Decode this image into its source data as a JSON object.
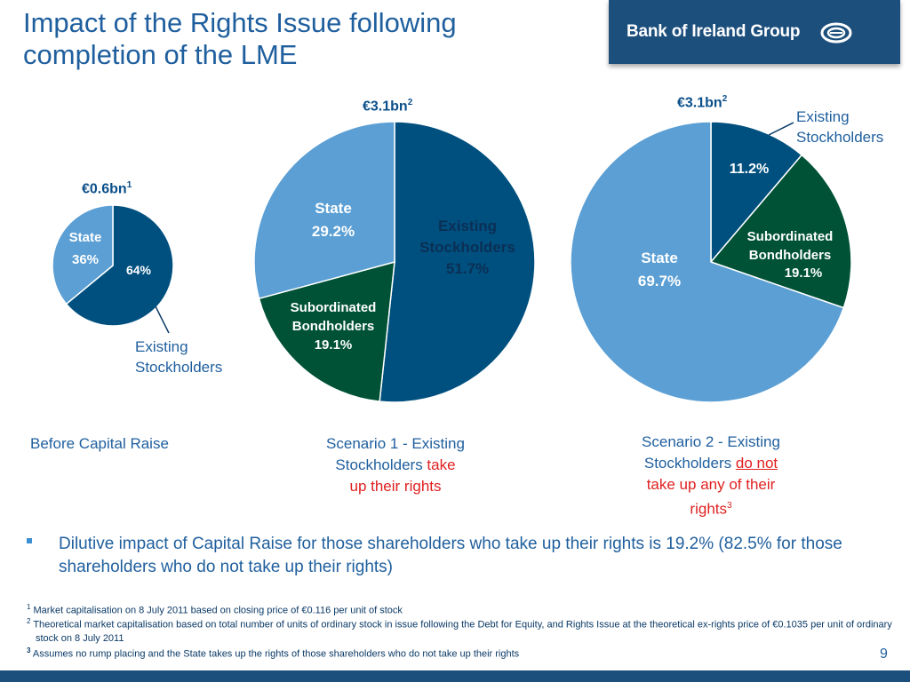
{
  "title": "Impact of the Rights Issue following completion of the LME",
  "logo": {
    "text": "Bank of Ireland Group",
    "icon": "bank-of-ireland-emblem-icon"
  },
  "colors": {
    "dark_blue": "#00507f",
    "light_blue": "#5b9fd4",
    "dark_green": "#005236",
    "text_blue": "#1f5f9e",
    "red": "#e02020"
  },
  "chart_data": [
    {
      "type": "pie",
      "title": "€0.6bn",
      "title_note": "1",
      "caption": "Before Capital Raise",
      "slices": [
        {
          "name": "Existing Stockholders",
          "value": 64,
          "label": "64%",
          "color": "#00507f"
        },
        {
          "name": "State",
          "value": 36,
          "label": "36%",
          "color": "#5b9fd4"
        }
      ]
    },
    {
      "type": "pie",
      "title": "€3.1bn",
      "title_note": "2",
      "caption_parts": [
        "Scenario 1 - Existing",
        "Stockholders ",
        "take",
        "up their rights"
      ],
      "slices": [
        {
          "name": "Existing Stockholders",
          "value": 51.7,
          "label": "51.7%",
          "color": "#00507f"
        },
        {
          "name": "Subordinated Bondholders",
          "value": 19.1,
          "label": "19.1%",
          "color": "#005236"
        },
        {
          "name": "State",
          "value": 29.2,
          "label": "29.2%",
          "color": "#5b9fd4"
        }
      ]
    },
    {
      "type": "pie",
      "title": "€3.1bn",
      "title_note": "2",
      "caption_parts": [
        "Scenario 2 - Existing",
        "Stockholders ",
        "do not",
        "take up any of their",
        "rights",
        "3"
      ],
      "slices": [
        {
          "name": "Existing Stockholders",
          "value": 11.2,
          "label": "11.2%",
          "color": "#00507f"
        },
        {
          "name": "Subordinated Bondholders",
          "value": 19.1,
          "label": "19.1%",
          "color": "#005236"
        },
        {
          "name": "State",
          "value": 69.7,
          "label": "69.7%",
          "color": "#5b9fd4"
        }
      ]
    }
  ],
  "labels": {
    "state": "State",
    "existing_line1": "Existing",
    "existing_line2": "Stockholders",
    "sub_line1": "Subordinated",
    "sub_line2": "Bondholders"
  },
  "bullet": "Dilutive impact of Capital Raise for those shareholders who take up their rights is 19.2% (82.5% for those shareholders who do not take up their rights)",
  "footnotes": [
    {
      "mark": "1",
      "text": "Market capitalisation on 8 July 2011 based on closing price of €0.116 per unit of stock"
    },
    {
      "mark": "2",
      "text": "Theoretical market capitalisation based on total number of units of ordinary stock in issue following the Debt for Equity, and Rights Issue at the theoretical ex-rights price of €0.1035 per unit of ordinary stock on 8 July 2011"
    },
    {
      "mark": "3",
      "text": "Assumes no rump placing and the State takes up the rights of those shareholders who do not take up their rights"
    }
  ],
  "page_number": "9"
}
